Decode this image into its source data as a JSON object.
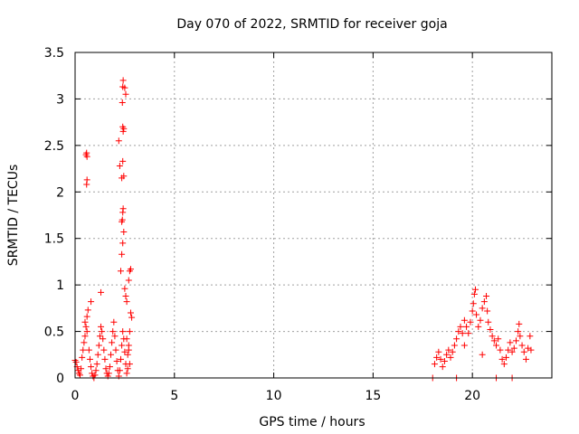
{
  "chart_data": {
    "type": "scatter",
    "title": "Day 070 of 2022, SRMTID for receiver goja",
    "xlabel": "GPS time / hours",
    "ylabel": "SRMTID / TECUs",
    "xlim": [
      0,
      24
    ],
    "ylim": [
      0,
      3.5
    ],
    "xticks": [
      0,
      5,
      10,
      15,
      20
    ],
    "yticks": [
      0,
      0.5,
      1,
      1.5,
      2,
      2.5,
      3,
      3.5
    ],
    "xtick_labels": [
      "0",
      "5",
      "10",
      "15",
      "20"
    ],
    "ytick_labels": [
      "0",
      "0.5",
      "1",
      "1.5",
      "2",
      "2.5",
      "3",
      "3.5"
    ],
    "grid": true,
    "marker": "+",
    "color": "#ff0000",
    "series": [
      {
        "name": "SRMTID",
        "points": [
          [
            0.0,
            0.19
          ],
          [
            0.05,
            0.17
          ],
          [
            0.1,
            0.12
          ],
          [
            0.15,
            0.08
          ],
          [
            0.2,
            0.05
          ],
          [
            0.25,
            0.03
          ],
          [
            0.3,
            0.1
          ],
          [
            0.35,
            0.22
          ],
          [
            0.4,
            0.3
          ],
          [
            0.45,
            0.38
          ],
          [
            0.5,
            0.45
          ],
          [
            0.5,
            0.6
          ],
          [
            0.55,
            0.55
          ],
          [
            0.6,
            0.5
          ],
          [
            0.6,
            0.66
          ],
          [
            0.65,
            0.73
          ],
          [
            0.55,
            2.4
          ],
          [
            0.6,
            2.38
          ],
          [
            0.58,
            2.42
          ],
          [
            0.6,
            2.13
          ],
          [
            0.58,
            2.08
          ],
          [
            0.7,
            0.3
          ],
          [
            0.75,
            0.2
          ],
          [
            0.8,
            0.12
          ],
          [
            0.85,
            0.05
          ],
          [
            0.9,
            0.02
          ],
          [
            0.95,
            0.0
          ],
          [
            1.0,
            0.03
          ],
          [
            0.8,
            0.82
          ],
          [
            1.05,
            0.08
          ],
          [
            1.1,
            0.15
          ],
          [
            1.15,
            0.25
          ],
          [
            1.2,
            0.35
          ],
          [
            1.25,
            0.45
          ],
          [
            1.3,
            0.55
          ],
          [
            1.35,
            0.5
          ],
          [
            1.4,
            0.42
          ],
          [
            1.45,
            0.3
          ],
          [
            1.5,
            0.2
          ],
          [
            1.55,
            0.1
          ],
          [
            1.6,
            0.05
          ],
          [
            1.65,
            0.02
          ],
          [
            1.3,
            0.92
          ],
          [
            1.7,
            0.05
          ],
          [
            1.75,
            0.12
          ],
          [
            1.8,
            0.25
          ],
          [
            1.85,
            0.38
          ],
          [
            1.9,
            0.5
          ],
          [
            1.95,
            0.6
          ],
          [
            2.0,
            0.45
          ],
          [
            2.05,
            0.3
          ],
          [
            2.1,
            0.18
          ],
          [
            2.15,
            0.08
          ],
          [
            2.2,
            0.02
          ],
          [
            2.25,
            0.08
          ],
          [
            2.3,
            0.2
          ],
          [
            2.35,
            0.35
          ],
          [
            2.4,
            0.5
          ],
          [
            2.45,
            0.42
          ],
          [
            2.5,
            0.28
          ],
          [
            2.55,
            0.15
          ],
          [
            2.6,
            0.05
          ],
          [
            2.65,
            0.1
          ],
          [
            2.7,
            0.3
          ],
          [
            2.75,
            0.5
          ],
          [
            2.8,
            0.7
          ],
          [
            2.85,
            0.65
          ],
          [
            2.2,
            2.55
          ],
          [
            2.25,
            2.28
          ],
          [
            2.3,
            1.15
          ],
          [
            2.35,
            1.33
          ],
          [
            2.4,
            1.45
          ],
          [
            2.45,
            1.57
          ],
          [
            2.35,
            1.68
          ],
          [
            2.38,
            1.7
          ],
          [
            2.4,
            1.78
          ],
          [
            2.42,
            1.82
          ],
          [
            2.35,
            2.15
          ],
          [
            2.45,
            2.17
          ],
          [
            2.4,
            2.33
          ],
          [
            2.42,
            2.65
          ],
          [
            2.4,
            2.7
          ],
          [
            2.45,
            2.68
          ],
          [
            2.38,
            2.96
          ],
          [
            2.4,
            3.13
          ],
          [
            2.42,
            3.2
          ],
          [
            2.5,
            3.12
          ],
          [
            2.55,
            3.05
          ],
          [
            2.5,
            0.96
          ],
          [
            2.55,
            0.88
          ],
          [
            2.6,
            0.82
          ],
          [
            2.7,
            1.05
          ],
          [
            2.75,
            1.15
          ],
          [
            2.8,
            1.17
          ],
          [
            2.6,
            0.42
          ],
          [
            2.7,
            0.35
          ],
          [
            2.65,
            0.25
          ],
          [
            2.75,
            0.15
          ],
          [
            18.0,
            0.0
          ],
          [
            18.1,
            0.15
          ],
          [
            18.2,
            0.22
          ],
          [
            18.3,
            0.28
          ],
          [
            18.4,
            0.2
          ],
          [
            18.5,
            0.12
          ],
          [
            18.6,
            0.18
          ],
          [
            18.7,
            0.25
          ],
          [
            18.8,
            0.3
          ],
          [
            18.9,
            0.22
          ],
          [
            19.0,
            0.28
          ],
          [
            19.1,
            0.35
          ],
          [
            19.2,
            0.42
          ],
          [
            19.3,
            0.5
          ],
          [
            19.4,
            0.55
          ],
          [
            19.5,
            0.48
          ],
          [
            19.6,
            0.62
          ],
          [
            19.7,
            0.55
          ],
          [
            19.8,
            0.48
          ],
          [
            19.9,
            0.6
          ],
          [
            20.0,
            0.72
          ],
          [
            20.05,
            0.8
          ],
          [
            20.1,
            0.9
          ],
          [
            20.15,
            0.95
          ],
          [
            20.2,
            0.68
          ],
          [
            20.3,
            0.55
          ],
          [
            20.4,
            0.62
          ],
          [
            20.5,
            0.75
          ],
          [
            20.6,
            0.82
          ],
          [
            20.7,
            0.88
          ],
          [
            20.75,
            0.72
          ],
          [
            20.8,
            0.6
          ],
          [
            20.9,
            0.52
          ],
          [
            21.0,
            0.45
          ],
          [
            21.1,
            0.4
          ],
          [
            21.2,
            0.35
          ],
          [
            21.3,
            0.42
          ],
          [
            21.4,
            0.3
          ],
          [
            21.5,
            0.2
          ],
          [
            21.6,
            0.15
          ],
          [
            21.7,
            0.22
          ],
          [
            21.8,
            0.3
          ],
          [
            21.9,
            0.38
          ],
          [
            22.0,
            0.28
          ],
          [
            22.1,
            0.32
          ],
          [
            22.2,
            0.4
          ],
          [
            22.3,
            0.5
          ],
          [
            22.35,
            0.58
          ],
          [
            22.4,
            0.45
          ],
          [
            22.5,
            0.35
          ],
          [
            22.6,
            0.28
          ],
          [
            22.7,
            0.2
          ],
          [
            22.8,
            0.32
          ],
          [
            22.9,
            0.45
          ],
          [
            22.95,
            0.3
          ],
          [
            19.2,
            0.0
          ],
          [
            21.2,
            0.0
          ],
          [
            22.0,
            0.0
          ],
          [
            20.5,
            0.25
          ],
          [
            19.6,
            0.35
          ]
        ]
      }
    ]
  }
}
